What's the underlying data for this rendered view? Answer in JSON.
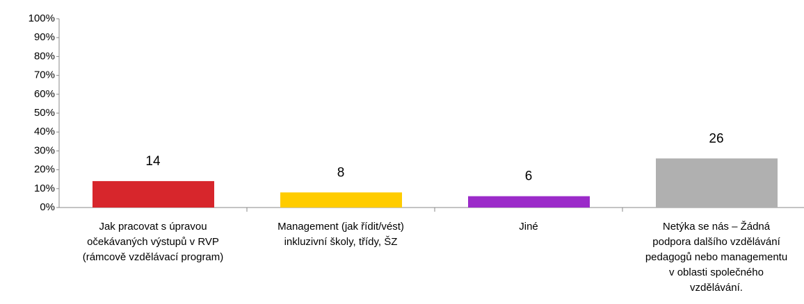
{
  "chart_data": {
    "type": "bar",
    "categories": [
      [
        "Jak pracovat s úpravou",
        "očekávaných výstupů v RVP",
        "(rámcově vzdělávací program)"
      ],
      [
        "Management (jak řídit/vést)",
        "inkluzivní školy, třídy, ŠZ"
      ],
      [
        "Jiné"
      ],
      [
        "Netýka se nás – Žádná",
        "podpora dalšího vzdělávání",
        "pedagogů nebo managementu",
        "v oblasti společného",
        "vzdělávání."
      ]
    ],
    "values": [
      14,
      8,
      6,
      26
    ],
    "colors": [
      "#d7262c",
      "#ffcc00",
      "#9b2bc9",
      "#b0b0b0"
    ],
    "ylim": [
      0,
      100
    ],
    "yticks": [
      {
        "value": 0,
        "label": "0%"
      },
      {
        "value": 10,
        "label": "10%"
      },
      {
        "value": 20,
        "label": "20%"
      },
      {
        "value": 30,
        "label": "30%"
      },
      {
        "value": 40,
        "label": "40%"
      },
      {
        "value": 50,
        "label": "50%"
      },
      {
        "value": 60,
        "label": "60%"
      },
      {
        "value": 70,
        "label": "70%"
      },
      {
        "value": 80,
        "label": "80%"
      },
      {
        "value": 90,
        "label": "90%"
      },
      {
        "value": 100,
        "label": "100%"
      }
    ],
    "grid": false
  }
}
